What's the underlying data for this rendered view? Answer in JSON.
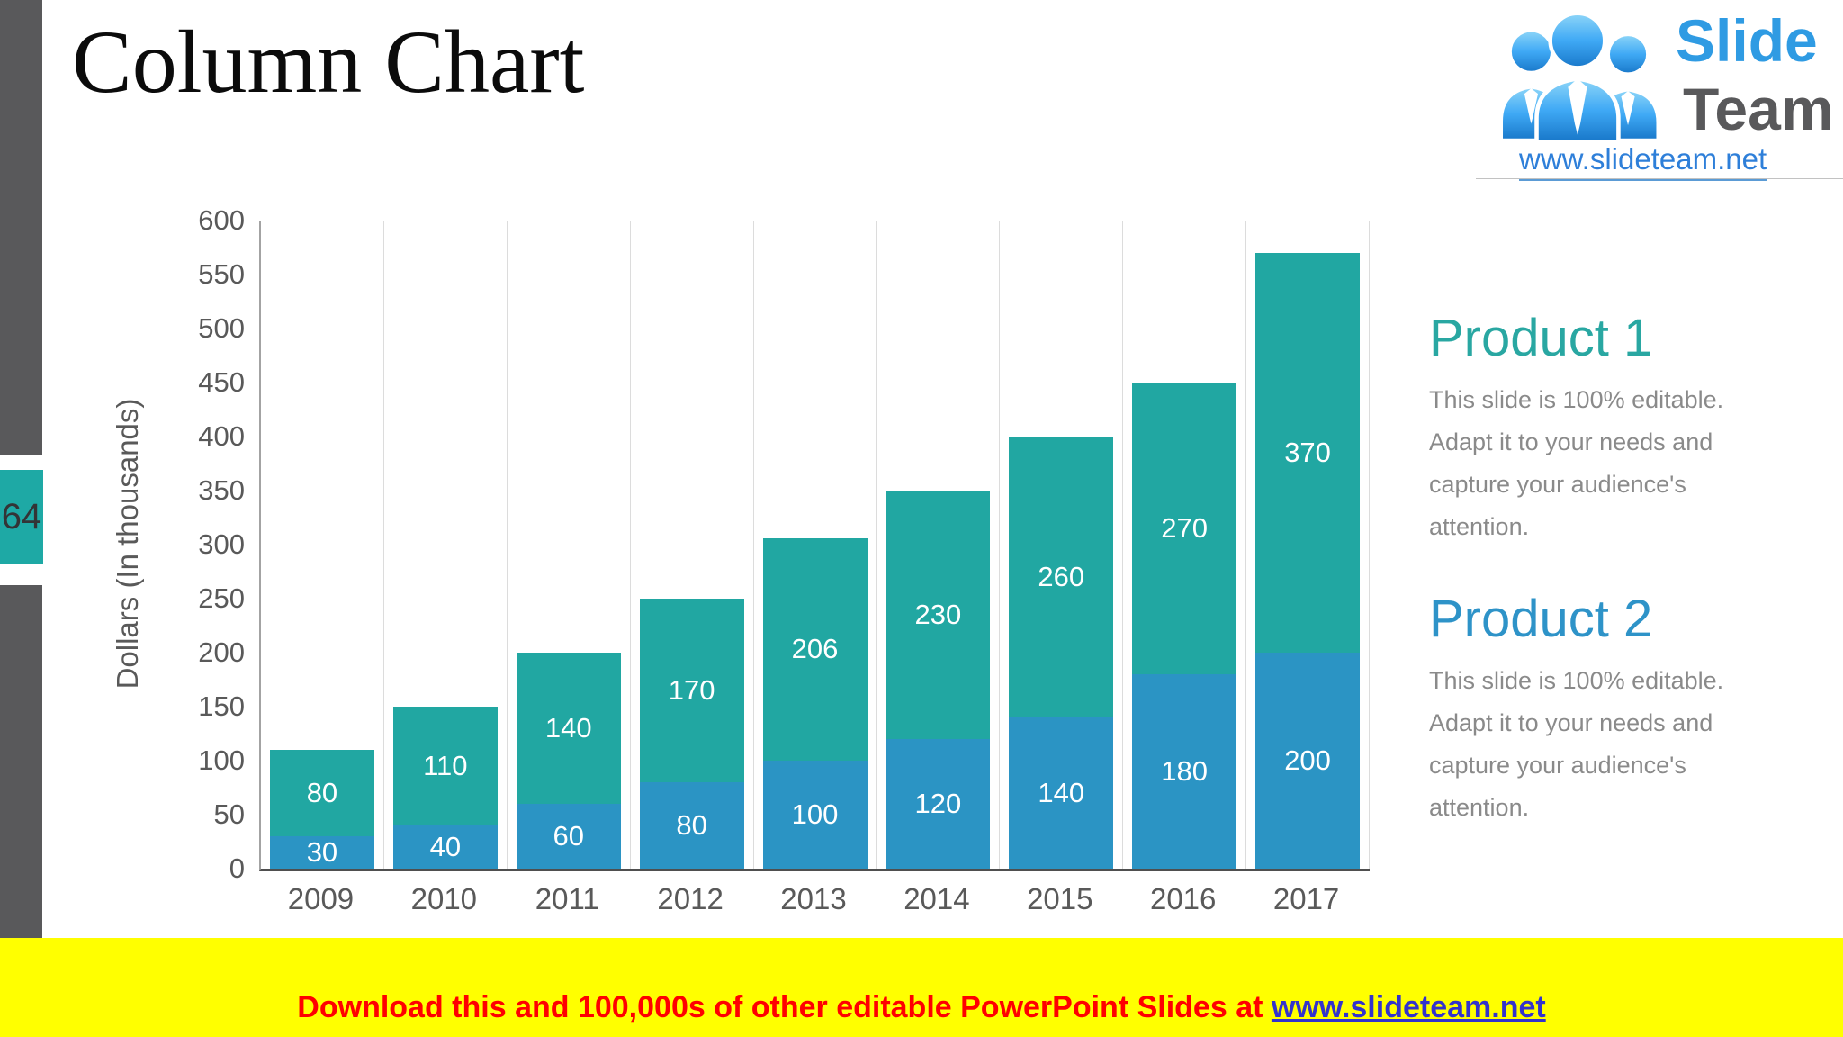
{
  "page": {
    "title": "Column Chart",
    "page_number": "64"
  },
  "logo": {
    "line1": "Slide",
    "line2": "Team",
    "url": "www.slideteam.net"
  },
  "chart_data": {
    "type": "bar",
    "stacked": true,
    "categories": [
      "2009",
      "2010",
      "2011",
      "2012",
      "2013",
      "2014",
      "2015",
      "2016",
      "2017"
    ],
    "series": [
      {
        "name": "Product 2",
        "color": "#2b94c4",
        "values": [
          30,
          40,
          60,
          80,
          100,
          120,
          140,
          180,
          200
        ]
      },
      {
        "name": "Product 1",
        "color": "#21a7a2",
        "values": [
          80,
          110,
          140,
          170,
          206,
          230,
          260,
          270,
          370
        ]
      }
    ],
    "totals": [
      110,
      150,
      200,
      250,
      306,
      350,
      400,
      450,
      570
    ],
    "ylabel": "Dollars (In thousands)",
    "ylim": [
      0,
      600
    ],
    "ytick_step": 50,
    "yticks": [
      600,
      550,
      500,
      450,
      400,
      350,
      300,
      250,
      200,
      150,
      100,
      50,
      0
    ],
    "grid": "vertical-category-lines",
    "legend": "none",
    "data_labels": "white, centered in each segment"
  },
  "products": [
    {
      "heading": "Product 1",
      "heading_color": "#29a7a2",
      "body_lines": [
        "This slide is 100% editable.",
        "Adapt it to your needs and",
        "capture your audience's",
        "attention."
      ]
    },
    {
      "heading": "Product 2",
      "heading_color": "#2e93c8",
      "body_lines": [
        "This slide is 100% editable.",
        "Adapt it to your needs and",
        "capture your audience's",
        "attention."
      ]
    }
  ],
  "banner": {
    "text": "Download this and 100,000s of other editable PowerPoint Slides at",
    "link": "www.slideteam.net"
  },
  "colors": {
    "accent_teal": "#21a7a2",
    "accent_blue": "#2b94c4",
    "strip_gray": "#59595b",
    "banner_yellow": "#ffff00",
    "banner_red": "#ff0000"
  }
}
